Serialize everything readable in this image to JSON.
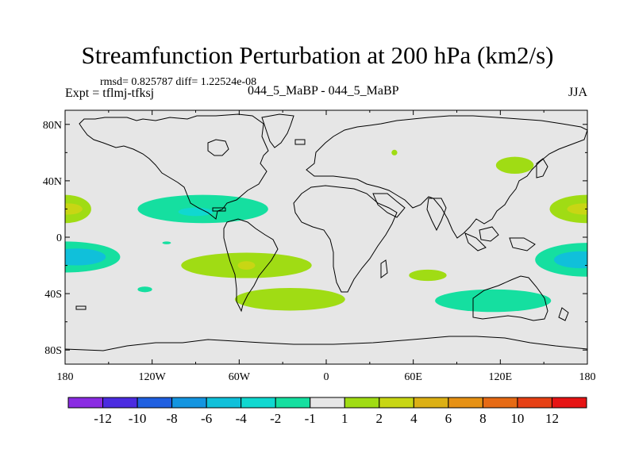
{
  "title": "Streamfunction Perturbation at 200 hPa (km2/s)",
  "subtitle": "rmsd= 0.825787 diff= 1.22524e-08",
  "left_label": "Expt = tflmj-tfksj",
  "center_label": "044_5_MaBP - 044_5_MaBP",
  "right_label": "JJA",
  "x_axis": {
    "range": [
      -180,
      180
    ],
    "ticks": [
      {
        "value": -180,
        "label": "180"
      },
      {
        "value": -120,
        "label": "120W"
      },
      {
        "value": -60,
        "label": "60W"
      },
      {
        "value": 0,
        "label": "0"
      },
      {
        "value": 60,
        "label": "60E"
      },
      {
        "value": 120,
        "label": "120E"
      },
      {
        "value": 180,
        "label": "180"
      }
    ]
  },
  "y_axis": {
    "range": [
      -90,
      90
    ],
    "ticks": [
      {
        "value": 80,
        "label": "80N"
      },
      {
        "value": 40,
        "label": "40N"
      },
      {
        "value": 0,
        "label": "0"
      },
      {
        "value": -40,
        "label": "40S"
      },
      {
        "value": -80,
        "label": "80S"
      }
    ]
  },
  "colorbar": {
    "colors": [
      "#8a2be2",
      "#4b2be0",
      "#1f5fe0",
      "#1495e0",
      "#10c0da",
      "#10d8d0",
      "#15dfa0",
      "#e6e6e6",
      "#a0dc14",
      "#c8d614",
      "#dcb014",
      "#e69114",
      "#e66a14",
      "#e64014",
      "#e61414"
    ],
    "labels": [
      "-12",
      "-10",
      "-8",
      "-6",
      "-4",
      "-2",
      "-1",
      "1",
      "2",
      "4",
      "6",
      "8",
      "10",
      "12"
    ]
  },
  "chart_data": {
    "type": "heatmap",
    "map_projection": "cylindrical equidistant",
    "background_color": "#e6e6e6",
    "features": [
      {
        "name": "north pacific low",
        "center": [
          -85,
          20
        ],
        "radius": [
          45,
          10
        ],
        "category": "-2..-1",
        "color": "#15dfa0",
        "core": {
          "center": [
            -90,
            18
          ],
          "radius": [
            12,
            3
          ],
          "color": "#10d8d0"
        }
      },
      {
        "name": "dateline high north",
        "center": [
          -180,
          20
        ],
        "radius": [
          18,
          10
        ],
        "category": "1..2",
        "color": "#a0dc14",
        "core": {
          "center": [
            -178,
            20
          ],
          "radius": [
            10,
            4
          ],
          "color": "#c8d614"
        }
      },
      {
        "name": "dateline high north east",
        "center": [
          180,
          20
        ],
        "radius": [
          26,
          10
        ],
        "category": "1..2",
        "color": "#a0dc14",
        "core": {
          "center": [
            178,
            20
          ],
          "radius": [
            12,
            4
          ],
          "color": "#c8d614"
        }
      },
      {
        "name": "south pacific low",
        "center": [
          -180,
          -14
        ],
        "radius": [
          38,
          11
        ],
        "category": "-2..-1",
        "color": "#15dfa0",
        "core": {
          "center": [
            -172,
            -14
          ],
          "radius": [
            20,
            6
          ],
          "color": "#10c0da"
        }
      },
      {
        "name": "south pacific low east",
        "center": [
          180,
          -16
        ],
        "radius": [
          36,
          12
        ],
        "category": "-2..-1",
        "color": "#15dfa0",
        "core": {
          "center": [
            175,
            -16
          ],
          "radius": [
            18,
            6
          ],
          "color": "#10c0da"
        }
      },
      {
        "name": "south america atlantic high",
        "center": [
          -55,
          -20
        ],
        "radius": [
          45,
          9
        ],
        "category": "1..2",
        "color": "#a0dc14",
        "core": {
          "center": [
            -55,
            -20
          ],
          "radius": [
            6,
            3
          ],
          "color": "#c8d614"
        }
      },
      {
        "name": "south atlantic high band",
        "center": [
          -25,
          -44
        ],
        "radius": [
          38,
          8
        ],
        "category": "1..2",
        "color": "#a0dc14"
      },
      {
        "name": "indian ocean high",
        "center": [
          70,
          -27
        ],
        "radius": [
          13,
          4
        ],
        "category": "1..2",
        "color": "#a0dc14"
      },
      {
        "name": "southern indian low",
        "center": [
          115,
          -45
        ],
        "radius": [
          40,
          8
        ],
        "category": "-2..-1",
        "color": "#15dfa0"
      },
      {
        "name": "asia high",
        "center": [
          130,
          51
        ],
        "radius": [
          13,
          6
        ],
        "category": "1..2",
        "color": "#a0dc14"
      },
      {
        "name": "small pacific low",
        "center": [
          -125,
          -37
        ],
        "radius": [
          5,
          2
        ],
        "category": "-2..-1",
        "color": "#15dfa0"
      },
      {
        "name": "small equatorial low",
        "center": [
          -110,
          -4
        ],
        "radius": [
          3,
          1
        ],
        "category": "-2..-1",
        "color": "#15dfa0"
      },
      {
        "name": "small central asia high",
        "center": [
          47,
          60
        ],
        "radius": [
          2,
          2
        ],
        "category": "1..2",
        "color": "#a0dc14"
      }
    ]
  }
}
